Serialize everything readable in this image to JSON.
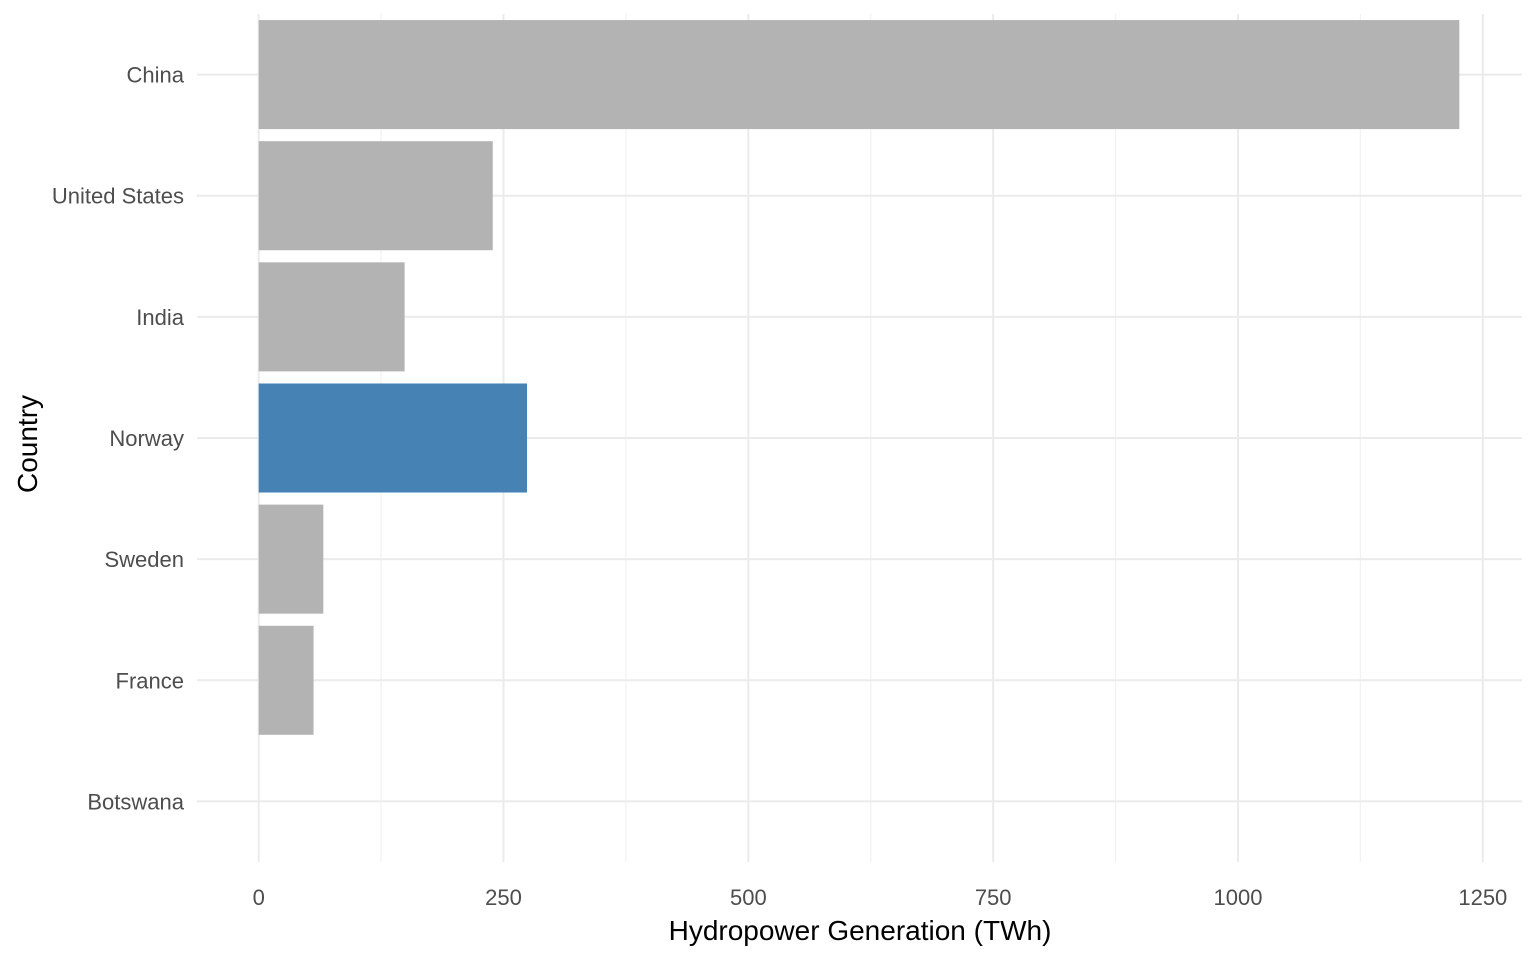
{
  "chart_data": {
    "type": "bar",
    "orientation": "horizontal",
    "xlabel": "Hydropower Generation (TWh)",
    "ylabel": "Country",
    "xlim": [
      -63,
      1290
    ],
    "xticks": [
      0,
      250,
      500,
      750,
      1000,
      1250
    ],
    "grid": true,
    "categories": [
      "China",
      "United States",
      "India",
      "Norway",
      "Sweden",
      "France",
      "Botswana"
    ],
    "values": [
      1226,
      239,
      149,
      274,
      66,
      56,
      0
    ],
    "highlight": "Norway",
    "colors": {
      "default_bar": "#b3b3b3",
      "highlight_bar": "#4682b4",
      "grid_major": "#ebebeb",
      "grid_minor": "#f2f2f2"
    }
  }
}
